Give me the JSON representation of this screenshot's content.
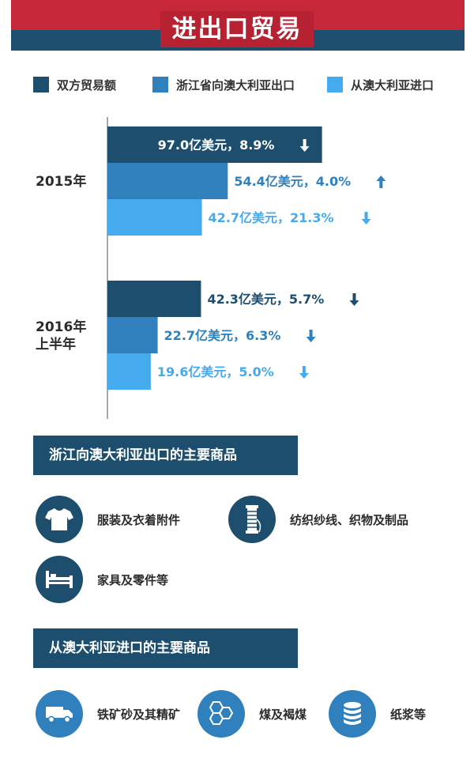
{
  "header": {
    "title": "进出口贸易"
  },
  "colors": {
    "dark": "#1d4e6e",
    "mid": "#2f80bd",
    "light": "#46aaee",
    "red": "#c6283a"
  },
  "legend": [
    {
      "label": "双方贸易额",
      "color": "#1d4e6e"
    },
    {
      "label": "浙江省向澳大利亚出口",
      "color": "#2f80bd"
    },
    {
      "label": "从澳大利亚进口",
      "color": "#46aaee"
    }
  ],
  "chart_data": {
    "type": "bar",
    "orientation": "horizontal",
    "categories": [
      [
        "2015年"
      ],
      [
        "2016年",
        "上半年"
      ]
    ],
    "series": [
      {
        "name": "双方贸易额",
        "values": [
          97.0,
          42.3
        ],
        "labels": [
          "97.0亿美元，8.9%",
          "42.3亿美元，5.7%"
        ],
        "arrows": [
          "down",
          "down"
        ],
        "color": "#1d4e6e"
      },
      {
        "name": "浙江省向澳大利亚出口",
        "values": [
          54.4,
          22.7
        ],
        "labels": [
          "54.4亿美元，4.0%",
          "22.7亿美元，6.3%"
        ],
        "arrows": [
          "up",
          "down"
        ],
        "color": "#2f80bd"
      },
      {
        "name": "从澳大利亚进口",
        "values": [
          42.7,
          19.6
        ],
        "labels": [
          "42.7亿美元，21.3%",
          "19.6亿美元，5.0%"
        ],
        "arrows": [
          "down",
          "down"
        ],
        "color": "#46aaee"
      }
    ],
    "xlim": [
      0,
      100
    ],
    "grid": false,
    "legend_position": "top"
  },
  "export_section": {
    "title": "浙江向澳大利亚出口的主要商品",
    "items": [
      {
        "label": "服装及衣着附件",
        "icon": "tshirt-icon"
      },
      {
        "label": "纺织纱线、织物及制品",
        "icon": "thread-spool-icon"
      },
      {
        "label": "家具及零件等",
        "icon": "bed-icon"
      }
    ]
  },
  "import_section": {
    "title": "从澳大利亚进口的主要商品",
    "items": [
      {
        "label": "铁矿砂及其精矿",
        "icon": "truck-icon"
      },
      {
        "label": "煤及褐煤",
        "icon": "hexagons-icon"
      },
      {
        "label": "纸浆等",
        "icon": "database-stack-icon"
      }
    ]
  }
}
